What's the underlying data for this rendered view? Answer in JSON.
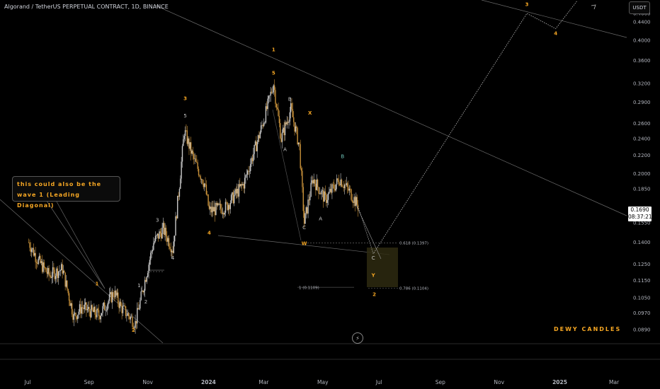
{
  "header": {
    "title": "Algorand / TetherUS PERPETUAL CONTRACT, 1D, BINANCE",
    "currency": "USDT"
  },
  "price_tag": {
    "price": "0.1690",
    "countdown": "08:37:21"
  },
  "note": {
    "line1": "this could also be the",
    "line2": "wave 1 (Leading Diagonal)"
  },
  "brand": "DEWY CANDLES",
  "colors": {
    "wave_label": "#f5a623",
    "candle": "#b8b8b8",
    "fib_zone": "#2e2a10",
    "line": "#888888"
  },
  "chart_data": {
    "type": "candlestick",
    "symbol": "ALGOUSDT.P",
    "timeframe": "1D",
    "scale": "log",
    "ylim": [
      0.084,
      0.5
    ],
    "xlim": [
      "2023-07-01",
      "2025-03-01"
    ],
    "y_ticks": [
      "0.4600",
      "0.4400",
      "0.4000",
      "0.3600",
      "0.3200",
      "0.2900",
      "0.2600",
      "0.2400",
      "0.2200",
      "0.2000",
      "0.1850",
      "0.1690",
      "0.1550",
      "0.1400",
      "0.1250",
      "0.1150",
      "0.1050",
      "0.0970",
      "0.0890"
    ],
    "x_ticks": [
      "Jul",
      "Sep",
      "Nov",
      "2024",
      "Mar",
      "May",
      "Jul",
      "Sep",
      "Nov",
      "2025",
      "Mar"
    ],
    "ohlc_path": [
      {
        "date": "2023-07-01",
        "close": 0.14
      },
      {
        "date": "2023-07-10",
        "close": 0.128
      },
      {
        "date": "2023-07-22",
        "close": 0.118
      },
      {
        "date": "2023-08-05",
        "close": 0.122
      },
      {
        "date": "2023-08-17",
        "close": 0.095
      },
      {
        "date": "2023-08-25",
        "close": 0.1
      },
      {
        "date": "2023-09-12",
        "close": 0.096
      },
      {
        "date": "2023-09-28",
        "close": 0.108
      },
      {
        "date": "2023-10-05",
        "close": 0.1
      },
      {
        "date": "2023-10-20",
        "close": 0.092
      },
      {
        "date": "2023-10-28",
        "close": 0.11
      },
      {
        "date": "2023-11-08",
        "close": 0.14
      },
      {
        "date": "2023-11-18",
        "close": 0.15
      },
      {
        "date": "2023-11-28",
        "close": 0.135
      },
      {
        "date": "2023-12-05",
        "close": 0.19
      },
      {
        "date": "2023-12-10",
        "close": 0.25
      },
      {
        "date": "2023-12-20",
        "close": 0.215
      },
      {
        "date": "2023-12-31",
        "close": 0.19
      },
      {
        "date": "2024-01-05",
        "close": 0.165
      },
      {
        "date": "2024-01-22",
        "close": 0.168
      },
      {
        "date": "2024-02-10",
        "close": 0.19
      },
      {
        "date": "2024-02-25",
        "close": 0.24
      },
      {
        "date": "2024-03-03",
        "close": 0.27
      },
      {
        "date": "2024-03-12",
        "close": 0.32
      },
      {
        "date": "2024-03-20",
        "close": 0.24
      },
      {
        "date": "2024-03-30",
        "close": 0.28
      },
      {
        "date": "2024-04-08",
        "close": 0.23
      },
      {
        "date": "2024-04-13",
        "close": 0.155
      },
      {
        "date": "2024-04-22",
        "close": 0.195
      },
      {
        "date": "2024-05-05",
        "close": 0.175
      },
      {
        "date": "2024-05-20",
        "close": 0.195
      },
      {
        "date": "2024-06-01",
        "close": 0.18
      },
      {
        "date": "2024-06-08",
        "close": 0.169
      }
    ],
    "wave_labels": [
      {
        "text": "1",
        "date": "2023-09-10",
        "price": 0.112,
        "color": "orange"
      },
      {
        "text": "2",
        "date": "2023-10-18",
        "price": 0.088,
        "color": "orange"
      },
      {
        "text": "1",
        "date": "2023-10-24",
        "price": 0.111,
        "color": "white"
      },
      {
        "text": "2",
        "date": "2023-10-31",
        "price": 0.102,
        "color": "white"
      },
      {
        "text": "3",
        "date": "2023-11-12",
        "price": 0.156,
        "color": "white"
      },
      {
        "text": "4",
        "date": "2023-11-28",
        "price": 0.128,
        "color": "white"
      },
      {
        "text": "5",
        "date": "2023-12-11",
        "price": 0.268,
        "color": "white"
      },
      {
        "text": "3",
        "date": "2023-12-11",
        "price": 0.293,
        "color": "orange"
      },
      {
        "text": "4",
        "date": "2024-01-05",
        "price": 0.146,
        "color": "orange"
      },
      {
        "text": "1",
        "date": "2024-03-12",
        "price": 0.378,
        "color": "orange"
      },
      {
        "text": "5",
        "date": "2024-03-12",
        "price": 0.335,
        "color": "orange"
      },
      {
        "text": "A",
        "date": "2024-03-24",
        "price": 0.225,
        "color": "white"
      },
      {
        "text": "B",
        "date": "2024-03-29",
        "price": 0.292,
        "color": "white"
      },
      {
        "text": "C",
        "date": "2024-04-13",
        "price": 0.15,
        "color": "white"
      },
      {
        "text": "X",
        "date": "2024-04-19",
        "price": 0.272,
        "color": "orange"
      },
      {
        "text": "W",
        "date": "2024-04-13",
        "price": 0.138,
        "color": "orange"
      },
      {
        "text": "A",
        "date": "2024-04-30",
        "price": 0.157,
        "color": "white"
      },
      {
        "text": "B",
        "date": "2024-05-23",
        "price": 0.217,
        "color": "teal"
      },
      {
        "text": "C",
        "date": "2024-06-24",
        "price": 0.128,
        "color": "white"
      },
      {
        "text": "Y",
        "date": "2024-06-24",
        "price": 0.117,
        "color": "orange"
      },
      {
        "text": "2",
        "date": "2024-06-25",
        "price": 0.106,
        "color": "orange"
      },
      {
        "text": "3",
        "date": "2024-12-01",
        "price": 0.478,
        "color": "orange"
      },
      {
        "text": "4",
        "date": "2024-12-31",
        "price": 0.411,
        "color": "orange"
      }
    ],
    "fib_levels": [
      {
        "label": "0.618 (0.1397)",
        "price": 0.1397
      },
      {
        "label": "0.786 (0.1104)",
        "price": 0.1104
      },
      {
        "label": "1 (0.1109)",
        "price": 0.1109
      }
    ],
    "projection_path": [
      {
        "date": "2024-06-08",
        "price": 0.169
      },
      {
        "date": "2024-06-24",
        "price": 0.132
      },
      {
        "date": "2024-12-01",
        "price": 0.46
      },
      {
        "date": "2024-12-31",
        "price": 0.425
      },
      {
        "date": "2025-01-22",
        "price": 0.49
      }
    ]
  }
}
